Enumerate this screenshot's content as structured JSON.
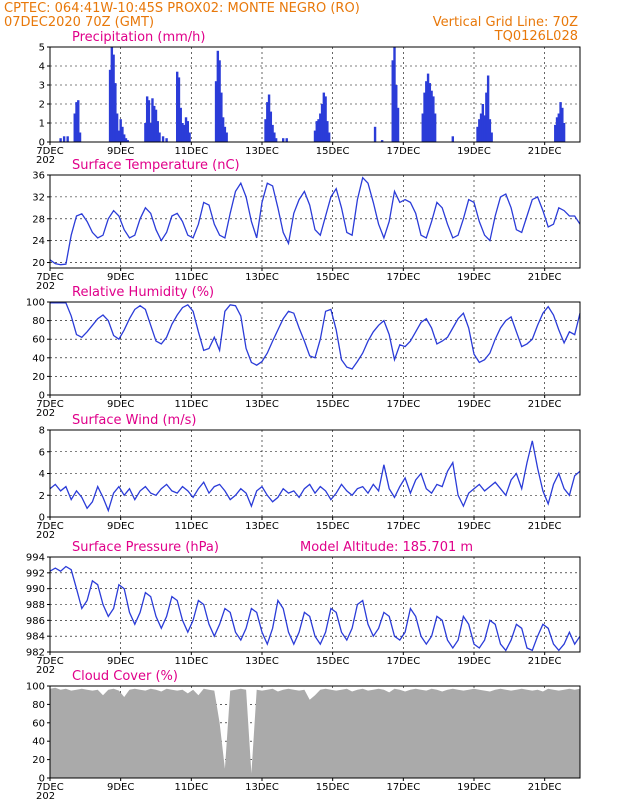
{
  "header": {
    "line1_left": "CPTEC:   064:41W-10:45S   PROX02: MONTE NEGRO (RO)",
    "line2_left": "07DEC2020 70Z (GMT)",
    "line2_right": "Vertical Grid Line: 70Z",
    "line3_right": "TQ0126L028"
  },
  "x_axis": {
    "tick_labels": [
      "7DEC",
      "9DEC",
      "11DEC",
      "13DEC",
      "15DEC",
      "17DEC",
      "19DEC",
      "21DEC"
    ],
    "tick_days": [
      0,
      2,
      4,
      6,
      8,
      10,
      12,
      14
    ],
    "range_days": [
      0,
      15
    ],
    "under_label": "202"
  },
  "colors": {
    "line": "#2b3cd8",
    "bar": "#2b3cd8",
    "cloud": "#aaaaaa",
    "header": "#e8780a",
    "title": "#e0008a"
  },
  "chart_data": [
    {
      "type": "bar",
      "title": "Precipitation (mm/h)",
      "ylim": [
        0,
        5
      ],
      "yticks": [
        0,
        1,
        2,
        3,
        4,
        5
      ],
      "x_unit": "days since 7DEC",
      "x": [
        0.3,
        0.4,
        0.5,
        0.7,
        0.75,
        0.8,
        0.85,
        1.7,
        1.75,
        1.8,
        1.85,
        1.9,
        1.95,
        2.0,
        2.05,
        2.1,
        2.15,
        2.2,
        2.7,
        2.75,
        2.8,
        2.85,
        2.9,
        2.95,
        3.0,
        3.05,
        3.1,
        3.2,
        3.3,
        3.6,
        3.65,
        3.7,
        3.75,
        3.8,
        3.85,
        3.9,
        3.95,
        4.7,
        4.75,
        4.8,
        4.85,
        4.9,
        4.95,
        5.0,
        6.1,
        6.15,
        6.2,
        6.25,
        6.3,
        6.35,
        6.4,
        6.6,
        6.7,
        7.5,
        7.55,
        7.6,
        7.65,
        7.7,
        7.75,
        7.8,
        7.85,
        7.9,
        9.2,
        9.4,
        9.7,
        9.75,
        9.8,
        9.85,
        10.55,
        10.6,
        10.65,
        10.7,
        10.75,
        10.8,
        10.85,
        10.9,
        11.4,
        12.1,
        12.15,
        12.2,
        12.25,
        12.3,
        12.35,
        12.4,
        12.45,
        12.5,
        14.3,
        14.35,
        14.4,
        14.45,
        14.5,
        14.55
      ],
      "values": [
        0.2,
        0.3,
        0.3,
        1.5,
        2.1,
        2.2,
        0.5,
        3.8,
        5.0,
        4.6,
        3.1,
        1.5,
        0.6,
        1.2,
        0.8,
        0.4,
        0.2,
        0.1,
        1.0,
        2.4,
        2.2,
        1.0,
        2.3,
        1.9,
        1.7,
        1.1,
        0.5,
        0.3,
        0.2,
        3.7,
        3.4,
        1.8,
        1.0,
        0.9,
        1.3,
        1.1,
        0.5,
        3.2,
        4.8,
        4.3,
        2.6,
        1.3,
        0.8,
        0.5,
        1.2,
        2.1,
        2.5,
        1.6,
        0.9,
        0.5,
        0.2,
        0.2,
        0.2,
        0.6,
        1.1,
        1.2,
        1.5,
        2.0,
        2.6,
        2.4,
        1.1,
        0.5,
        0.8,
        0.1,
        4.3,
        5.0,
        3.0,
        1.8,
        1.5,
        2.6,
        3.2,
        3.6,
        3.1,
        2.7,
        2.4,
        1.5,
        0.3,
        0.8,
        1.2,
        1.5,
        2.0,
        1.4,
        2.6,
        3.5,
        1.2,
        0.5,
        0.9,
        1.3,
        1.5,
        2.1,
        1.8,
        1.0
      ]
    },
    {
      "type": "line",
      "title": "Surface Temperature (nC)",
      "ylim": [
        19,
        36
      ],
      "yticks": [
        20,
        24,
        28,
        32,
        36
      ],
      "x_unit": "days since 7DEC",
      "x": [
        0,
        0.15,
        0.3,
        0.45,
        0.6,
        0.75,
        0.9,
        1.05,
        1.2,
        1.35,
        1.5,
        1.65,
        1.8,
        1.95,
        2.1,
        2.25,
        2.4,
        2.55,
        2.7,
        2.85,
        3.0,
        3.15,
        3.3,
        3.45,
        3.6,
        3.75,
        3.9,
        4.05,
        4.2,
        4.35,
        4.5,
        4.65,
        4.8,
        4.95,
        5.1,
        5.25,
        5.4,
        5.55,
        5.7,
        5.85,
        6.0,
        6.15,
        6.3,
        6.45,
        6.6,
        6.75,
        6.9,
        7.05,
        7.2,
        7.35,
        7.5,
        7.65,
        7.8,
        7.95,
        8.1,
        8.25,
        8.4,
        8.55,
        8.7,
        8.85,
        9.0,
        9.15,
        9.3,
        9.45,
        9.6,
        9.75,
        9.9,
        10.05,
        10.2,
        10.35,
        10.5,
        10.65,
        10.8,
        10.95,
        11.1,
        11.25,
        11.4,
        11.55,
        11.7,
        11.85,
        12.0,
        12.15,
        12.3,
        12.45,
        12.6,
        12.75,
        12.9,
        13.05,
        13.2,
        13.35,
        13.5,
        13.65,
        13.8,
        13.95,
        14.1,
        14.25,
        14.4,
        14.55,
        14.7,
        14.85,
        15.0
      ],
      "values": [
        20.5,
        19.8,
        19.6,
        19.7,
        25.0,
        28.5,
        28.9,
        27.5,
        25.5,
        24.5,
        25.0,
        28.0,
        29.5,
        28.5,
        26.0,
        24.5,
        25.0,
        28.0,
        30.0,
        29.0,
        26.0,
        24.0,
        25.5,
        28.5,
        29.0,
        27.5,
        25.0,
        24.5,
        27.0,
        31.0,
        30.5,
        27.0,
        25.0,
        24.5,
        29.0,
        33.0,
        34.5,
        32.0,
        27.5,
        24.5,
        31.0,
        34.5,
        34.0,
        30.0,
        25.5,
        23.5,
        29.0,
        31.5,
        33.0,
        30.5,
        26.0,
        25.0,
        28.5,
        32.0,
        33.5,
        30.0,
        25.5,
        25.0,
        31.5,
        35.5,
        34.5,
        31.0,
        27.0,
        24.5,
        27.5,
        33.0,
        31.0,
        31.5,
        31.0,
        29.0,
        25.0,
        24.5,
        27.5,
        31.0,
        30.0,
        27.0,
        24.5,
        25.0,
        28.0,
        31.5,
        31.0,
        27.5,
        25.0,
        24.0,
        28.5,
        32.0,
        32.5,
        30.0,
        26.0,
        25.5,
        28.5,
        31.5,
        32.0,
        29.5,
        26.5,
        27.0,
        30.0,
        29.5,
        28.5,
        28.5,
        27.0
      ]
    },
    {
      "type": "line",
      "title": "Relative Humidity (%)",
      "ylim": [
        0,
        100
      ],
      "yticks": [
        0,
        20,
        40,
        60,
        80,
        100
      ],
      "x_unit": "days since 7DEC",
      "x": [
        0,
        0.15,
        0.3,
        0.45,
        0.6,
        0.75,
        0.9,
        1.05,
        1.2,
        1.35,
        1.5,
        1.65,
        1.8,
        1.95,
        2.1,
        2.25,
        2.4,
        2.55,
        2.7,
        2.85,
        3.0,
        3.15,
        3.3,
        3.45,
        3.6,
        3.75,
        3.9,
        4.05,
        4.2,
        4.35,
        4.5,
        4.65,
        4.8,
        4.95,
        5.1,
        5.25,
        5.4,
        5.55,
        5.7,
        5.85,
        6.0,
        6.15,
        6.3,
        6.45,
        6.6,
        6.75,
        6.9,
        7.05,
        7.2,
        7.35,
        7.5,
        7.65,
        7.8,
        7.95,
        8.1,
        8.25,
        8.4,
        8.55,
        8.7,
        8.85,
        9.0,
        9.15,
        9.3,
        9.45,
        9.6,
        9.75,
        9.9,
        10.05,
        10.2,
        10.35,
        10.5,
        10.65,
        10.8,
        10.95,
        11.1,
        11.25,
        11.4,
        11.55,
        11.7,
        11.85,
        12.0,
        12.15,
        12.3,
        12.45,
        12.6,
        12.75,
        12.9,
        13.05,
        13.2,
        13.35,
        13.5,
        13.65,
        13.8,
        13.95,
        14.1,
        14.25,
        14.4,
        14.55,
        14.7,
        14.85,
        15.0
      ],
      "values": [
        99,
        99,
        99,
        99,
        85,
        65,
        62,
        68,
        75,
        82,
        86,
        80,
        64,
        60,
        70,
        82,
        92,
        96,
        92,
        75,
        58,
        55,
        62,
        76,
        86,
        94,
        97,
        90,
        68,
        48,
        50,
        62,
        48,
        90,
        97,
        96,
        85,
        50,
        35,
        32,
        36,
        45,
        58,
        70,
        82,
        90,
        88,
        72,
        58,
        42,
        40,
        60,
        90,
        92,
        70,
        38,
        30,
        28,
        36,
        45,
        58,
        68,
        75,
        80,
        65,
        38,
        54,
        52,
        58,
        68,
        78,
        82,
        72,
        55,
        58,
        62,
        72,
        82,
        88,
        72,
        44,
        35,
        38,
        45,
        60,
        72,
        80,
        84,
        68,
        52,
        55,
        60,
        75,
        88,
        95,
        86,
        70,
        56,
        68,
        65,
        88
      ]
    },
    {
      "type": "line",
      "title": "Surface Wind (m/s)",
      "ylim": [
        0,
        8
      ],
      "yticks": [
        0,
        2,
        4,
        6,
        8
      ],
      "x_unit": "days since 7DEC",
      "x": [
        0,
        0.15,
        0.3,
        0.45,
        0.6,
        0.75,
        0.9,
        1.05,
        1.2,
        1.35,
        1.5,
        1.65,
        1.8,
        1.95,
        2.1,
        2.25,
        2.4,
        2.55,
        2.7,
        2.85,
        3.0,
        3.15,
        3.3,
        3.45,
        3.6,
        3.75,
        3.9,
        4.05,
        4.2,
        4.35,
        4.5,
        4.65,
        4.8,
        4.95,
        5.1,
        5.25,
        5.4,
        5.55,
        5.7,
        5.85,
        6.0,
        6.15,
        6.3,
        6.45,
        6.6,
        6.75,
        6.9,
        7.05,
        7.2,
        7.35,
        7.5,
        7.65,
        7.8,
        7.95,
        8.1,
        8.25,
        8.4,
        8.55,
        8.7,
        8.85,
        9.0,
        9.15,
        9.3,
        9.45,
        9.6,
        9.75,
        9.9,
        10.05,
        10.2,
        10.35,
        10.5,
        10.65,
        10.8,
        10.95,
        11.1,
        11.25,
        11.4,
        11.55,
        11.7,
        11.85,
        12.0,
        12.15,
        12.3,
        12.45,
        12.6,
        12.75,
        12.9,
        13.05,
        13.2,
        13.35,
        13.5,
        13.65,
        13.8,
        13.95,
        14.1,
        14.25,
        14.4,
        14.55,
        14.7,
        14.85,
        15.0
      ],
      "values": [
        2.6,
        3.0,
        2.4,
        2.8,
        1.6,
        2.4,
        1.8,
        0.8,
        1.4,
        2.8,
        1.8,
        0.6,
        2.2,
        2.8,
        2.0,
        2.6,
        1.6,
        2.4,
        2.8,
        2.2,
        2.0,
        2.6,
        3.0,
        2.4,
        2.2,
        2.8,
        2.4,
        1.8,
        2.6,
        3.2,
        2.2,
        2.8,
        3.0,
        2.4,
        1.6,
        2.0,
        2.6,
        2.2,
        1.0,
        2.4,
        2.8,
        2.0,
        1.4,
        1.8,
        2.6,
        2.2,
        2.4,
        1.8,
        2.6,
        3.0,
        2.2,
        2.8,
        2.4,
        1.6,
        2.2,
        3.0,
        2.4,
        2.0,
        2.6,
        2.8,
        2.2,
        3.0,
        2.4,
        4.8,
        2.6,
        1.8,
        2.8,
        3.6,
        2.2,
        3.4,
        4.0,
        2.6,
        2.2,
        3.0,
        2.8,
        4.2,
        5.0,
        2.0,
        1.0,
        2.2,
        2.6,
        3.0,
        2.4,
        2.8,
        3.2,
        2.6,
        2.0,
        3.4,
        4.0,
        2.6,
        5.0,
        7.0,
        4.5,
        2.4,
        1.2,
        3.0,
        4.0,
        2.6,
        2.0,
        3.8,
        4.2
      ]
    },
    {
      "type": "line",
      "title": "Surface Pressure (hPa)",
      "annotation": "Model Altitude: 185.701 m",
      "ylim": [
        982,
        994
      ],
      "yticks": [
        982,
        984,
        986,
        988,
        990,
        992,
        994
      ],
      "x_unit": "days since 7DEC",
      "x": [
        0,
        0.15,
        0.3,
        0.45,
        0.6,
        0.75,
        0.9,
        1.05,
        1.2,
        1.35,
        1.5,
        1.65,
        1.8,
        1.95,
        2.1,
        2.25,
        2.4,
        2.55,
        2.7,
        2.85,
        3.0,
        3.15,
        3.3,
        3.45,
        3.6,
        3.75,
        3.9,
        4.05,
        4.2,
        4.35,
        4.5,
        4.65,
        4.8,
        4.95,
        5.1,
        5.25,
        5.4,
        5.55,
        5.7,
        5.85,
        6.0,
        6.15,
        6.3,
        6.45,
        6.6,
        6.75,
        6.9,
        7.05,
        7.2,
        7.35,
        7.5,
        7.65,
        7.8,
        7.95,
        8.1,
        8.25,
        8.4,
        8.55,
        8.7,
        8.85,
        9.0,
        9.15,
        9.3,
        9.45,
        9.6,
        9.75,
        9.9,
        10.05,
        10.2,
        10.35,
        10.5,
        10.65,
        10.8,
        10.95,
        11.1,
        11.25,
        11.4,
        11.55,
        11.7,
        11.85,
        12.0,
        12.15,
        12.3,
        12.45,
        12.6,
        12.75,
        12.9,
        13.05,
        13.2,
        13.35,
        13.5,
        13.65,
        13.8,
        13.95,
        14.1,
        14.25,
        14.4,
        14.55,
        14.7,
        14.85,
        15.0
      ],
      "values": [
        992.2,
        992.6,
        992.2,
        992.8,
        992.4,
        990.0,
        987.5,
        988.5,
        991.0,
        990.5,
        988.0,
        986.5,
        987.5,
        990.5,
        990.0,
        987.0,
        985.5,
        987.0,
        989.5,
        989.0,
        986.5,
        985.0,
        986.5,
        989.0,
        988.5,
        986.0,
        984.5,
        986.0,
        988.5,
        988.0,
        985.5,
        984.0,
        985.5,
        987.5,
        987.0,
        984.5,
        983.5,
        985.0,
        987.5,
        987.0,
        984.5,
        983.0,
        985.0,
        988.5,
        987.5,
        984.5,
        983.0,
        984.5,
        987.0,
        986.5,
        984.0,
        983.0,
        984.5,
        987.5,
        987.0,
        984.5,
        983.5,
        985.0,
        988.0,
        988.5,
        985.5,
        984.0,
        985.0,
        987.0,
        986.5,
        984.0,
        983.5,
        984.5,
        987.5,
        986.5,
        984.0,
        983.0,
        984.0,
        986.5,
        986.0,
        983.5,
        982.5,
        983.5,
        986.5,
        985.5,
        983.0,
        982.5,
        983.5,
        986.0,
        985.5,
        983.0,
        982.2,
        983.5,
        985.5,
        985.0,
        982.5,
        982.2,
        984.0,
        985.5,
        985.0,
        983.0,
        982.2,
        983.0,
        984.5,
        983.0,
        984.0
      ]
    },
    {
      "type": "area",
      "title": "Cloud Cover (%)",
      "ylim": [
        0,
        100
      ],
      "yticks": [
        0,
        20,
        40,
        60,
        80,
        100
      ],
      "x_unit": "days since 7DEC",
      "x": [
        0,
        0.15,
        0.3,
        0.45,
        0.6,
        0.75,
        0.9,
        1.05,
        1.2,
        1.35,
        1.5,
        1.65,
        1.8,
        1.95,
        2.1,
        2.25,
        2.4,
        2.55,
        2.7,
        2.85,
        3.0,
        3.15,
        3.3,
        3.45,
        3.6,
        3.75,
        3.9,
        4.05,
        4.2,
        4.35,
        4.5,
        4.65,
        4.8,
        4.95,
        5.1,
        5.25,
        5.4,
        5.55,
        5.7,
        5.85,
        6.0,
        6.15,
        6.3,
        6.45,
        6.6,
        6.75,
        6.9,
        7.05,
        7.2,
        7.35,
        7.5,
        7.65,
        7.8,
        7.95,
        8.1,
        8.25,
        8.4,
        8.55,
        8.7,
        8.85,
        9.0,
        9.15,
        9.3,
        9.45,
        9.6,
        9.75,
        9.9,
        10.05,
        10.2,
        10.35,
        10.5,
        10.65,
        10.8,
        10.95,
        11.1,
        11.25,
        11.4,
        11.55,
        11.7,
        11.85,
        12.0,
        12.15,
        12.3,
        12.45,
        12.6,
        12.75,
        12.9,
        13.05,
        13.2,
        13.35,
        13.5,
        13.65,
        13.8,
        13.95,
        14.1,
        14.25,
        14.4,
        14.55,
        14.7,
        14.85,
        15.0
      ],
      "values": [
        97,
        98,
        96,
        97,
        95,
        96,
        97,
        96,
        95,
        96,
        90,
        96,
        97,
        95,
        88,
        96,
        97,
        96,
        95,
        97,
        96,
        94,
        97,
        96,
        95,
        96,
        92,
        96,
        90,
        97,
        96,
        95,
        60,
        10,
        95,
        96,
        97,
        96,
        5,
        96,
        95,
        96,
        97,
        94,
        96,
        97,
        96,
        95,
        96,
        85,
        90,
        96,
        97,
        96,
        95,
        96,
        97,
        94,
        96,
        97,
        95,
        96,
        97,
        96,
        93,
        97,
        96,
        94,
        96,
        97,
        96,
        95,
        97,
        96,
        94,
        96,
        97,
        96,
        95,
        96,
        97,
        96,
        95,
        94,
        96,
        97,
        96,
        95,
        96,
        97,
        96,
        95,
        96,
        94,
        97,
        96,
        95,
        96,
        97,
        96,
        97
      ]
    }
  ]
}
